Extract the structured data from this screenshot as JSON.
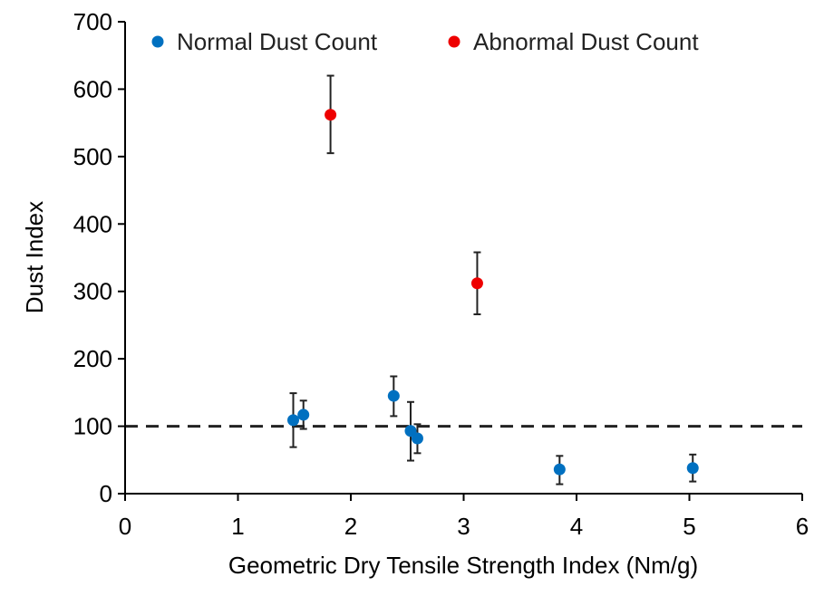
{
  "chart_data": {
    "type": "scatter",
    "xlabel": "Geometric Dry Tensile Strength Index (Nm/g)",
    "ylabel": "Dust Index",
    "xlim": [
      0,
      6
    ],
    "ylim": [
      0,
      700
    ],
    "xticks": [
      0,
      1,
      2,
      3,
      4,
      5,
      6
    ],
    "yticks": [
      0,
      100,
      200,
      300,
      400,
      500,
      600,
      700
    ],
    "xtick_labels": [
      "0",
      "1",
      "2",
      "3",
      "4",
      "5",
      "6"
    ],
    "ytick_labels": [
      "0",
      "100",
      "200",
      "300",
      "400",
      "500",
      "600",
      "700"
    ],
    "grid": false,
    "legend_position": "top",
    "reference_line": {
      "y": 100,
      "style": "dashed",
      "color": "#222222"
    },
    "series": [
      {
        "name": "Normal Dust Count",
        "color": "#0070C0",
        "points": [
          {
            "x": 1.49,
            "y": 109,
            "err_low": 69,
            "err_high": 149
          },
          {
            "x": 1.58,
            "y": 117,
            "err_low": 96,
            "err_high": 138
          },
          {
            "x": 2.38,
            "y": 145,
            "err_low": 115,
            "err_high": 174
          },
          {
            "x": 2.53,
            "y": 93,
            "err_low": 49,
            "err_high": 136
          },
          {
            "x": 2.59,
            "y": 82,
            "err_low": 60,
            "err_high": 103
          },
          {
            "x": 3.85,
            "y": 36,
            "err_low": 14,
            "err_high": 56
          },
          {
            "x": 5.03,
            "y": 38,
            "err_low": 18,
            "err_high": 58
          }
        ]
      },
      {
        "name": "Abnormal Dust Count",
        "color": "#EE0000",
        "points": [
          {
            "x": 1.82,
            "y": 562,
            "err_low": 505,
            "err_high": 620
          },
          {
            "x": 3.12,
            "y": 312,
            "err_low": 266,
            "err_high": 358
          }
        ]
      }
    ]
  }
}
